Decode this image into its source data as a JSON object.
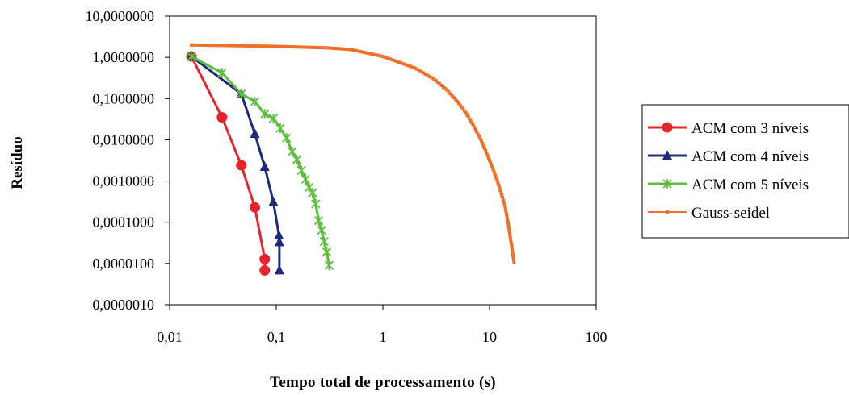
{
  "chart_data": {
    "type": "line",
    "xscale": "log",
    "yscale": "log",
    "xlim": [
      0.01,
      100
    ],
    "ylim": [
      1e-06,
      10
    ],
    "xlabel": "Tempo total de processamento (s)",
    "ylabel": "Resíduo",
    "grid": false,
    "legend_position": "right",
    "x_ticks": [
      {
        "value": 0.01,
        "label": "0,01"
      },
      {
        "value": 0.1,
        "label": "0,1"
      },
      {
        "value": 1,
        "label": "1"
      },
      {
        "value": 10,
        "label": "10"
      },
      {
        "value": 100,
        "label": "100"
      }
    ],
    "y_ticks": [
      {
        "value": 10,
        "label": "10,0000000"
      },
      {
        "value": 1,
        "label": "1,0000000"
      },
      {
        "value": 0.1,
        "label": "0,1000000"
      },
      {
        "value": 0.01,
        "label": "0,0100000"
      },
      {
        "value": 0.001,
        "label": "0,0010000"
      },
      {
        "value": 0.0001,
        "label": "0,0001000"
      },
      {
        "value": 1e-05,
        "label": "0,0000100"
      },
      {
        "value": 1e-06,
        "label": "0,0000010"
      }
    ],
    "series": [
      {
        "name": "ACM com 3 níveis",
        "color": "#e8232a",
        "marker": "circle",
        "x": [
          0.016,
          0.031,
          0.047,
          0.063,
          0.078,
          0.078
        ],
        "y": [
          1.05,
          0.035,
          0.0024,
          0.00023,
          1.28e-05,
          6.8e-06
        ]
      },
      {
        "name": "ACM com 4 níveis",
        "color": "#1f2a7a",
        "marker": "triangle",
        "x": [
          0.016,
          0.047,
          0.063,
          0.078,
          0.094,
          0.106,
          0.107,
          0.107
        ],
        "y": [
          1.05,
          0.13,
          0.014,
          0.0022,
          0.00031,
          4.8e-05,
          3.3e-05,
          6.8e-06
        ]
      },
      {
        "name": "ACM com 5 níveis",
        "color": "#5cbf3c",
        "marker": "star",
        "x": [
          0.016,
          0.031,
          0.047,
          0.063,
          0.078,
          0.094,
          0.109,
          0.125,
          0.141,
          0.156,
          0.172,
          0.188,
          0.203,
          0.219,
          0.234,
          0.25,
          0.266,
          0.281,
          0.297,
          0.313
        ],
        "y": [
          1.05,
          0.42,
          0.13,
          0.085,
          0.042,
          0.033,
          0.019,
          0.011,
          0.0052,
          0.0033,
          0.0018,
          0.0011,
          0.0007,
          0.00052,
          0.00028,
          0.00011,
          6.4e-05,
          3.4e-05,
          1.9e-05,
          9e-06
        ]
      },
      {
        "name": "Gauss-seidel",
        "color": "#f0702a",
        "marker": "small-square",
        "x": [
          0.016,
          0.1,
          0.3,
          0.5,
          1,
          2,
          3,
          4,
          5,
          6,
          7,
          8,
          9,
          10,
          11,
          12,
          13,
          14,
          15,
          16,
          17
        ],
        "y": [
          2.0,
          1.85,
          1.7,
          1.55,
          1.05,
          0.55,
          0.3,
          0.16,
          0.085,
          0.045,
          0.023,
          0.012,
          0.0062,
          0.0032,
          0.0017,
          0.0009,
          0.00046,
          0.00024,
          9e-05,
          3e-05,
          1.05e-05
        ]
      }
    ]
  }
}
